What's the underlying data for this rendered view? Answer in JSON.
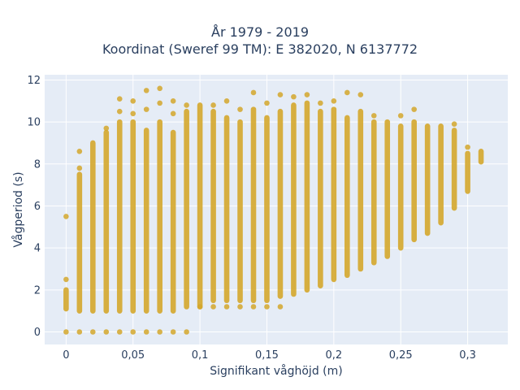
{
  "chart_data": {
    "type": "scatter",
    "title_line1": "År 1979 - 2019",
    "title_line2": "Koordinat (Sweref 99 TM): E 382020, N 6137772",
    "xlabel": "Signifikant våghöjd (m)",
    "ylabel": "Vågperiod (s)",
    "xlim": [
      -0.016,
      0.33
    ],
    "ylim": [
      -0.6,
      12.25
    ],
    "x_ticks": [
      0,
      0.05,
      0.1,
      0.15,
      0.2,
      0.25,
      0.3
    ],
    "x_tick_labels": [
      "0",
      "0,05",
      "0,1",
      "0,15",
      "0,2",
      "0,25",
      "0,3"
    ],
    "y_ticks": [
      0,
      2,
      4,
      6,
      8,
      10,
      12
    ],
    "y_tick_labels": [
      "0",
      "2",
      "4",
      "6",
      "8",
      "10",
      "12"
    ],
    "grid": true,
    "colors": {
      "marker": "#d4a72c",
      "plot_bg": "#e5ecf6",
      "grid": "#ffffff",
      "text": "#2a3f5f"
    },
    "columns": [
      {
        "x": 0.0,
        "range": [
          1.1,
          2.0
        ],
        "points": [
          0,
          2.5,
          5.5
        ]
      },
      {
        "x": 0.01,
        "range": [
          1.0,
          7.5
        ],
        "points": [
          0,
          7.8,
          8.6
        ]
      },
      {
        "x": 0.02,
        "range": [
          1.0,
          9.0
        ],
        "points": [
          0
        ]
      },
      {
        "x": 0.03,
        "range": [
          1.0,
          9.5
        ],
        "points": [
          0,
          9.7
        ]
      },
      {
        "x": 0.04,
        "range": [
          1.0,
          10.0
        ],
        "points": [
          0,
          10.5,
          11.1
        ]
      },
      {
        "x": 0.05,
        "range": [
          1.0,
          10.0
        ],
        "points": [
          0,
          10.4,
          11.0
        ]
      },
      {
        "x": 0.06,
        "range": [
          1.0,
          9.6
        ],
        "points": [
          0,
          10.6,
          11.5
        ]
      },
      {
        "x": 0.07,
        "range": [
          1.0,
          10.0
        ],
        "points": [
          0,
          10.9,
          11.6
        ]
      },
      {
        "x": 0.08,
        "range": [
          1.0,
          9.5
        ],
        "points": [
          0,
          10.4,
          11.0
        ]
      },
      {
        "x": 0.09,
        "range": [
          1.2,
          10.5
        ],
        "points": [
          0,
          10.8
        ]
      },
      {
        "x": 0.1,
        "range": [
          1.2,
          10.8
        ],
        "points": [
          1.2
        ]
      },
      {
        "x": 0.11,
        "range": [
          1.5,
          10.5
        ],
        "points": [
          1.2,
          10.8
        ]
      },
      {
        "x": 0.12,
        "range": [
          1.5,
          10.2
        ],
        "points": [
          1.2,
          11.0
        ]
      },
      {
        "x": 0.13,
        "range": [
          1.5,
          10.0
        ],
        "points": [
          1.2,
          10.6
        ]
      },
      {
        "x": 0.14,
        "range": [
          1.5,
          10.6
        ],
        "points": [
          1.2,
          11.4
        ]
      },
      {
        "x": 0.15,
        "range": [
          1.5,
          10.2
        ],
        "points": [
          1.2,
          10.9
        ]
      },
      {
        "x": 0.16,
        "range": [
          1.7,
          10.5
        ],
        "points": [
          1.2,
          11.3
        ]
      },
      {
        "x": 0.17,
        "range": [
          1.8,
          10.8
        ],
        "points": [
          11.2
        ]
      },
      {
        "x": 0.18,
        "range": [
          2.0,
          10.9
        ],
        "points": [
          11.3
        ]
      },
      {
        "x": 0.19,
        "range": [
          2.2,
          10.5
        ],
        "points": [
          10.9
        ]
      },
      {
        "x": 0.2,
        "range": [
          2.5,
          10.6
        ],
        "points": [
          11.0
        ]
      },
      {
        "x": 0.21,
        "range": [
          2.7,
          10.2
        ],
        "points": [
          11.4
        ]
      },
      {
        "x": 0.22,
        "range": [
          3.0,
          10.5
        ],
        "points": [
          11.3
        ]
      },
      {
        "x": 0.23,
        "range": [
          3.3,
          10.0
        ],
        "points": [
          10.3
        ]
      },
      {
        "x": 0.24,
        "range": [
          3.6,
          10.0
        ],
        "points": []
      },
      {
        "x": 0.25,
        "range": [
          4.0,
          9.8
        ],
        "points": [
          10.3
        ]
      },
      {
        "x": 0.26,
        "range": [
          4.4,
          10.0
        ],
        "points": [
          10.6
        ]
      },
      {
        "x": 0.27,
        "range": [
          4.7,
          9.8
        ],
        "points": []
      },
      {
        "x": 0.28,
        "range": [
          5.2,
          9.8
        ],
        "points": []
      },
      {
        "x": 0.29,
        "range": [
          5.9,
          9.6
        ],
        "points": [
          9.9
        ]
      },
      {
        "x": 0.3,
        "range": [
          6.7,
          8.5
        ],
        "points": [
          8.8
        ]
      },
      {
        "x": 0.31,
        "range": [
          8.1,
          8.6
        ],
        "points": []
      }
    ]
  }
}
